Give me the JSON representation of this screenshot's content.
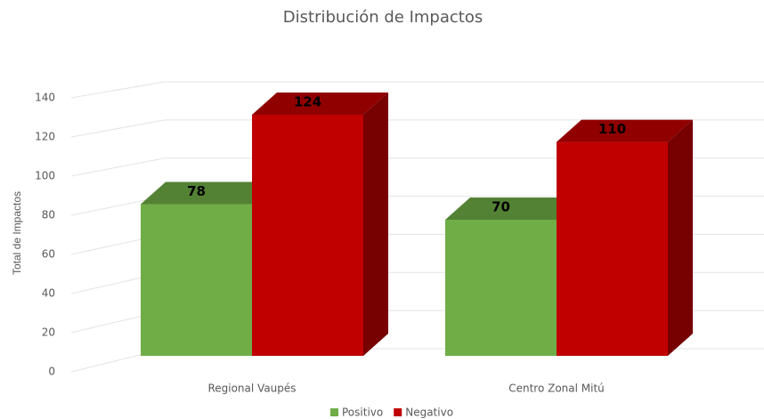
{
  "chart_data": {
    "type": "bar3d",
    "title": "Distribución de Impactos",
    "ylabel": "Total de Impactos",
    "categories": [
      "Regional Vaupés",
      "Centro Zonal Mitú"
    ],
    "series": [
      {
        "name": "Positivo",
        "color": "#70ad47",
        "values": [
          78,
          70
        ]
      },
      {
        "name": "Negativo",
        "color": "#c00000",
        "values": [
          124,
          110
        ]
      }
    ],
    "ylim": [
      0,
      140
    ],
    "yticks": [
      0,
      20,
      40,
      60,
      80,
      100,
      120,
      140
    ],
    "grid": true,
    "legend": "bottom"
  }
}
